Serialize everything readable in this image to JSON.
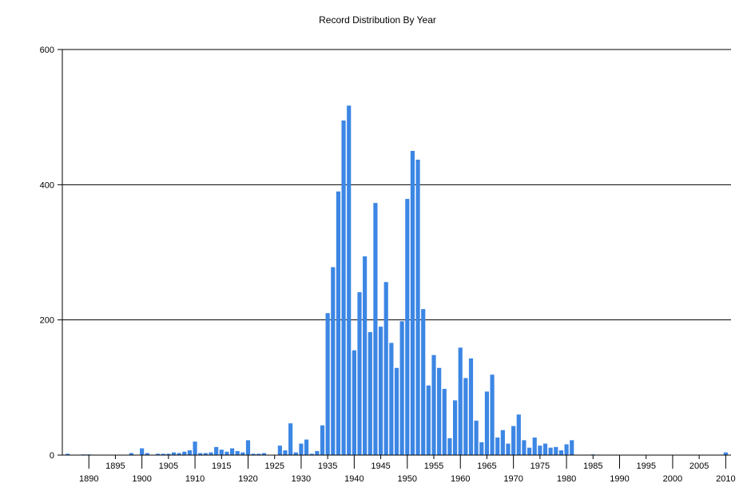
{
  "chart_data": {
    "type": "bar",
    "title": "Record Distribution By Year",
    "xlabel": "",
    "ylabel": "",
    "ylim": [
      0,
      600
    ],
    "y_ticks": [
      0,
      200,
      400,
      600
    ],
    "x_ticks": [
      1890,
      1895,
      1900,
      1905,
      1910,
      1915,
      1920,
      1925,
      1930,
      1935,
      1940,
      1945,
      1950,
      1955,
      1960,
      1965,
      1970,
      1975,
      1980,
      1985,
      1990,
      1995,
      2000,
      2005,
      2010
    ],
    "xlim": [
      1885,
      2011
    ],
    "grid": "horizontal",
    "bar_color": "#3C86E4",
    "points": [
      [
        1886,
        2
      ],
      [
        1889,
        1
      ],
      [
        1890,
        1
      ],
      [
        1898,
        3
      ],
      [
        1900,
        10
      ],
      [
        1901,
        3
      ],
      [
        1903,
        2
      ],
      [
        1904,
        2
      ],
      [
        1905,
        2
      ],
      [
        1906,
        4
      ],
      [
        1907,
        3
      ],
      [
        1908,
        5
      ],
      [
        1909,
        7
      ],
      [
        1910,
        20
      ],
      [
        1911,
        3
      ],
      [
        1912,
        3
      ],
      [
        1913,
        4
      ],
      [
        1914,
        12
      ],
      [
        1915,
        8
      ],
      [
        1916,
        5
      ],
      [
        1917,
        10
      ],
      [
        1918,
        6
      ],
      [
        1919,
        4
      ],
      [
        1920,
        22
      ],
      [
        1921,
        2
      ],
      [
        1922,
        2
      ],
      [
        1923,
        3
      ],
      [
        1926,
        14
      ],
      [
        1927,
        7
      ],
      [
        1928,
        47
      ],
      [
        1929,
        4
      ],
      [
        1930,
        17
      ],
      [
        1931,
        23
      ],
      [
        1932,
        2
      ],
      [
        1933,
        6
      ],
      [
        1934,
        44
      ],
      [
        1935,
        210
      ],
      [
        1936,
        278
      ],
      [
        1937,
        390
      ],
      [
        1938,
        495
      ],
      [
        1939,
        517
      ],
      [
        1940,
        155
      ],
      [
        1941,
        241
      ],
      [
        1942,
        294
      ],
      [
        1943,
        182
      ],
      [
        1944,
        373
      ],
      [
        1945,
        190
      ],
      [
        1946,
        256
      ],
      [
        1947,
        166
      ],
      [
        1948,
        129
      ],
      [
        1949,
        198
      ],
      [
        1950,
        379
      ],
      [
        1951,
        450
      ],
      [
        1952,
        437
      ],
      [
        1953,
        216
      ],
      [
        1954,
        103
      ],
      [
        1955,
        148
      ],
      [
        1956,
        129
      ],
      [
        1957,
        98
      ],
      [
        1958,
        25
      ],
      [
        1959,
        81
      ],
      [
        1960,
        159
      ],
      [
        1961,
        114
      ],
      [
        1962,
        143
      ],
      [
        1963,
        51
      ],
      [
        1964,
        19
      ],
      [
        1965,
        94
      ],
      [
        1966,
        119
      ],
      [
        1967,
        26
      ],
      [
        1968,
        37
      ],
      [
        1969,
        17
      ],
      [
        1970,
        43
      ],
      [
        1971,
        60
      ],
      [
        1972,
        22
      ],
      [
        1973,
        11
      ],
      [
        1974,
        26
      ],
      [
        1975,
        14
      ],
      [
        1976,
        17
      ],
      [
        1977,
        11
      ],
      [
        1978,
        12
      ],
      [
        1979,
        7
      ],
      [
        1980,
        16
      ],
      [
        1981,
        22
      ],
      [
        1985,
        1
      ],
      [
        2010,
        4
      ]
    ]
  }
}
